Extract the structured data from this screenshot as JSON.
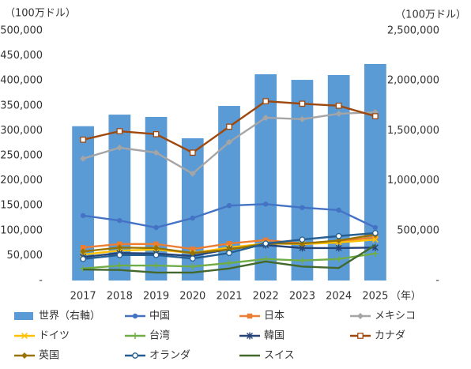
{
  "chart_data": {
    "type": "combo",
    "y_axis_label": "（100万ドル）",
    "y2_axis_label": "（100万ドル）",
    "x_axis_label": "（年）",
    "categories": [
      "2017",
      "2018",
      "2019",
      "2020",
      "2021",
      "2022",
      "2023",
      "2024",
      "2025"
    ],
    "ylim": [
      0,
      500000
    ],
    "yticks": [
      {
        "value": 0,
        "label": "-"
      },
      {
        "value": 50000,
        "label": "50,000"
      },
      {
        "value": 100000,
        "label": "100,000"
      },
      {
        "value": 150000,
        "label": "150,000"
      },
      {
        "value": 200000,
        "label": "200,000"
      },
      {
        "value": 250000,
        "label": "250,000"
      },
      {
        "value": 300000,
        "label": "300,000"
      },
      {
        "value": 350000,
        "label": "350,000"
      },
      {
        "value": 400000,
        "label": "400,000"
      },
      {
        "value": 450000,
        "label": "450,000"
      },
      {
        "value": 500000,
        "label": "500,000"
      }
    ],
    "y2lim": [
      0,
      2500000
    ],
    "y2ticks": [
      {
        "value": 0,
        "label": "-"
      },
      {
        "value": 500000,
        "label": "500,000"
      },
      {
        "value": 1000000,
        "label": "1,000,000"
      },
      {
        "value": 1500000,
        "label": "1,500,000"
      },
      {
        "value": 2000000,
        "label": "2,000,000"
      },
      {
        "value": 2500000,
        "label": "2,500,000"
      }
    ],
    "series": [
      {
        "name": "世界（右軸）",
        "kind": "bar",
        "axis": "y2",
        "color": "#5b9bd5",
        "values": [
          1545000,
          1661000,
          1638000,
          1424000,
          1748000,
          2065000,
          2009000,
          2057000,
          2168000
        ]
      },
      {
        "name": "中国",
        "kind": "line",
        "marker": "circle",
        "color": "#4472c4",
        "values": [
          130000,
          120000,
          106000,
          125000,
          150000,
          153000,
          146000,
          141000,
          106000
        ]
      },
      {
        "name": "日本",
        "kind": "line",
        "marker": "square",
        "color": "#ed7d31",
        "values": [
          66000,
          73000,
          73000,
          63000,
          74000,
          81000,
          74000,
          78000,
          87000
        ]
      },
      {
        "name": "メキシコ",
        "kind": "line",
        "marker": "diamond",
        "color": "#a5a5a5",
        "values": [
          244000,
          266000,
          256000,
          214000,
          277000,
          326000,
          323000,
          334000,
          337000
        ]
      },
      {
        "name": "ドイツ",
        "kind": "line",
        "marker": "x",
        "color": "#ffc000",
        "values": [
          52000,
          60000,
          62000,
          55000,
          66000,
          74000,
          73000,
          76000,
          82000
        ]
      },
      {
        "name": "台湾",
        "kind": "line",
        "marker": "plus",
        "color": "#70ad47",
        "values": [
          24000,
          30000,
          30000,
          28000,
          35000,
          43000,
          40000,
          43000,
          54000
        ]
      },
      {
        "name": "韓国",
        "kind": "line",
        "marker": "star",
        "color": "#264478",
        "values": [
          47000,
          55000,
          54000,
          49000,
          63000,
          71000,
          65000,
          65000,
          66000
        ]
      },
      {
        "name": "カナダ",
        "kind": "line",
        "marker": "open-square",
        "color": "#9e480e",
        "values": [
          282000,
          299000,
          293000,
          256000,
          308000,
          359000,
          354000,
          350000,
          329000
        ]
      },
      {
        "name": "英国",
        "kind": "line",
        "marker": "diamond",
        "color": "#997300",
        "values": [
          58000,
          66000,
          65000,
          55000,
          62000,
          74000,
          74000,
          80000,
          92000
        ]
      },
      {
        "name": "オランダ",
        "kind": "line",
        "marker": "open-circle",
        "color": "#255e91",
        "values": [
          43000,
          51000,
          51000,
          44000,
          55000,
          74000,
          82000,
          89000,
          95000
        ]
      },
      {
        "name": "スイス",
        "kind": "line",
        "marker": "none",
        "color": "#43682b",
        "values": [
          22000,
          21000,
          16000,
          16000,
          24000,
          38000,
          28000,
          25000,
          71000
        ]
      }
    ]
  }
}
